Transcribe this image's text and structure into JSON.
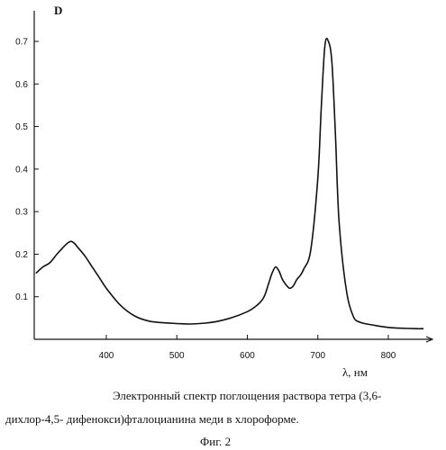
{
  "chart_data": {
    "type": "line",
    "ylabel": "D",
    "xlabel": "λ, нм",
    "xlim": [
      300,
      860
    ],
    "ylim": [
      0,
      0.8
    ],
    "x_ticks": [
      400,
      500,
      600,
      700,
      800
    ],
    "y_ticks": [
      0.1,
      0.2,
      0.3,
      0.4,
      0.5,
      0.6,
      0.7
    ],
    "y_tick_labels": [
      "0.1",
      "0.2",
      "0.3",
      "0.4",
      "0.5",
      "0.6",
      "0.7"
    ],
    "grid": false,
    "series": [
      {
        "x": [
          300,
          310,
          320,
          330,
          340,
          345,
          350,
          355,
          360,
          370,
          380,
          390,
          400,
          420,
          440,
          460,
          480,
          500,
          520,
          540,
          560,
          580,
          600,
          610,
          620,
          625,
          630,
          635,
          640,
          645,
          650,
          655,
          660,
          665,
          670,
          675,
          680,
          690,
          700,
          705,
          710,
          715,
          720,
          725,
          730,
          740,
          750,
          760,
          780,
          800,
          820,
          840,
          850
        ],
        "y": [
          0.155,
          0.17,
          0.18,
          0.2,
          0.218,
          0.226,
          0.23,
          0.225,
          0.215,
          0.195,
          0.17,
          0.145,
          0.12,
          0.08,
          0.055,
          0.043,
          0.039,
          0.037,
          0.036,
          0.038,
          0.043,
          0.052,
          0.065,
          0.075,
          0.09,
          0.105,
          0.13,
          0.155,
          0.17,
          0.16,
          0.14,
          0.128,
          0.12,
          0.125,
          0.14,
          0.15,
          0.165,
          0.21,
          0.38,
          0.55,
          0.69,
          0.7,
          0.65,
          0.48,
          0.28,
          0.12,
          0.055,
          0.04,
          0.033,
          0.028,
          0.026,
          0.025,
          0.025
        ]
      }
    ]
  },
  "caption": {
    "line1": "Электронный спектр поглощения раствора тетра (3,6-",
    "line2": "дихлор-4,5- дифенокси)фталоцианина меди в хлороформе."
  },
  "figure_label": "Фиг. 2"
}
